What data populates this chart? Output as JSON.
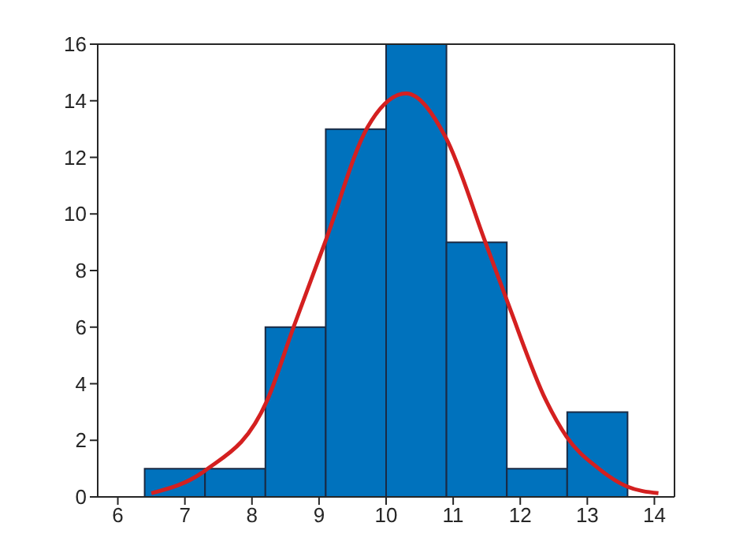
{
  "chart_data": {
    "type": "histogram",
    "bins": [
      6.4,
      7.3,
      8.2,
      9.1,
      10.0,
      10.9,
      11.8,
      12.7,
      13.6
    ],
    "values": [
      1,
      1,
      6,
      13,
      16,
      9,
      1,
      3
    ],
    "color": "#0072bd",
    "series": [
      {
        "type": "line",
        "color": "#d42020",
        "x": [
          6.5,
          7.3,
          8.23,
          8.62,
          9.09,
          9.72,
          10.3,
          10.89,
          11.48,
          11.83,
          12.38,
          12.69,
          13.16,
          13.59,
          14.06
        ],
        "values": [
          0.13,
          0.93,
          3.43,
          6.0,
          9.0,
          13.05,
          14.26,
          12.7,
          9.0,
          6.76,
          3.43,
          2.13,
          1.02,
          0.37,
          0.13
        ]
      }
    ],
    "xlim": [
      5.7,
      14.3
    ],
    "xticks": [
      6,
      7,
      8,
      9,
      10,
      11,
      12,
      13,
      14
    ],
    "ylim": [
      0,
      16
    ],
    "yticks": [
      0,
      2,
      4,
      6,
      8,
      10,
      12,
      14,
      16
    ]
  }
}
